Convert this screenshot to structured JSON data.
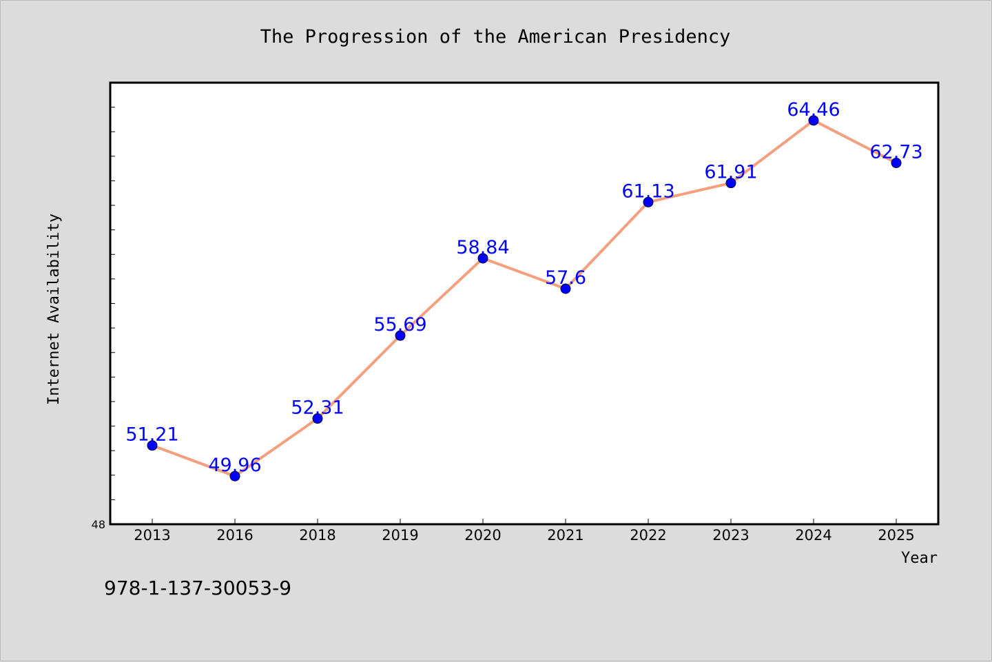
{
  "chart_data": {
    "type": "line",
    "title": "The Progression of the American Presidency",
    "xlabel": "Year",
    "ylabel": "Internet Availability",
    "categories": [
      "2013",
      "2016",
      "2018",
      "2019",
      "2020",
      "2021",
      "2022",
      "2023",
      "2024",
      "2025"
    ],
    "series": [
      {
        "values": [
          51.21,
          49.96,
          52.31,
          55.69,
          58.84,
          57.6,
          61.13,
          61.91,
          64.46,
          62.73
        ],
        "data_labels": [
          "51.21",
          "49.96",
          "52.31",
          "55.69",
          "58.84",
          "57.6",
          "61.13",
          "61.91",
          "64.46",
          "62.73"
        ]
      }
    ],
    "ylim": [
      48,
      66
    ],
    "y_tick_labels": [
      "48"
    ],
    "grid": false,
    "colors": {
      "line": "#f4a07e",
      "marker": "#0000ff",
      "label": "#0000ff",
      "background": "#dcdcdc",
      "plot": "#ffffff"
    }
  },
  "footer_text": "978-1-137-30053-9"
}
